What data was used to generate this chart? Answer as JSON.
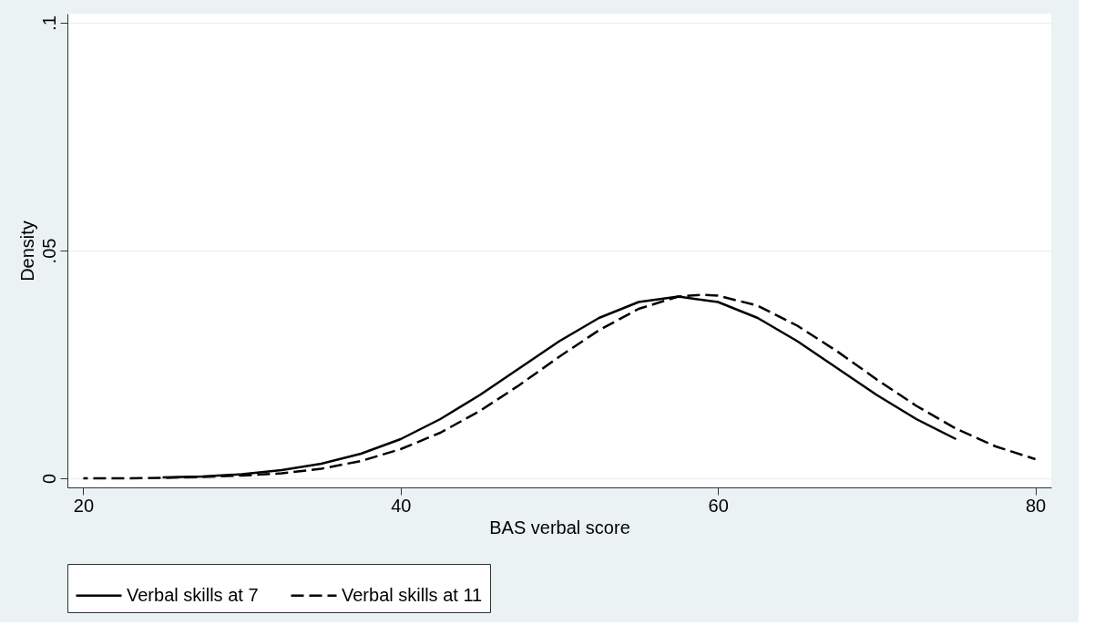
{
  "chart_data": {
    "type": "line",
    "xlabel": "BAS verbal score",
    "ylabel": "Density",
    "xlim": [
      19,
      81
    ],
    "xticks": [
      20,
      40,
      60,
      80
    ],
    "ylim": [
      -0.002,
      0.102
    ],
    "yticks": [
      {
        "value": 0,
        "label": "0"
      },
      {
        "value": 0.05,
        "label": ".05"
      },
      {
        "value": 0.1,
        "label": ".1"
      }
    ],
    "grid": "y",
    "legend": "bottom",
    "marker": "none",
    "series": [
      {
        "name": "Verbal skills at 7",
        "color": "#000000",
        "line_style": "solid",
        "x": [
          25,
          27.5,
          30,
          32.5,
          35,
          37.5,
          40,
          42.5,
          45,
          47.5,
          50,
          52.5,
          55,
          57.5,
          60,
          62.5,
          65,
          67.5,
          70,
          72.5,
          75
        ],
        "values": [
          0.0002,
          0.0004,
          0.0009,
          0.0018,
          0.0032,
          0.0054,
          0.0086,
          0.013,
          0.0183,
          0.0242,
          0.0301,
          0.0352,
          0.0387,
          0.0399,
          0.0387,
          0.0352,
          0.0301,
          0.0242,
          0.0183,
          0.013,
          0.0086
        ]
      },
      {
        "name": "Verbal skills at 11",
        "color": "#000000",
        "line_style": "dashed",
        "x": [
          20,
          22.5,
          25,
          27.5,
          30,
          32.5,
          35,
          37.5,
          40,
          42.5,
          45,
          47.5,
          50,
          52.5,
          55,
          57.5,
          59,
          60,
          62.5,
          65,
          67.5,
          70,
          72.5,
          75,
          77.5,
          80
        ],
        "values": [
          0.0,
          0.0,
          0.0001,
          0.0003,
          0.0006,
          0.0011,
          0.0021,
          0.0038,
          0.0064,
          0.01,
          0.0148,
          0.0205,
          0.0267,
          0.0325,
          0.0372,
          0.0399,
          0.0403,
          0.0401,
          0.0379,
          0.0335,
          0.0279,
          0.0217,
          0.0159,
          0.0109,
          0.007,
          0.0042
        ]
      }
    ]
  }
}
